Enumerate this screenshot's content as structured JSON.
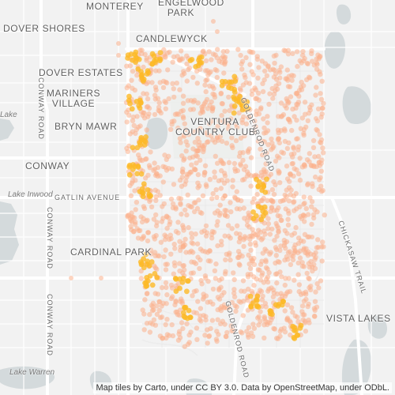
{
  "map": {
    "place_labels": {
      "monterey": "MONTEREY",
      "engelwood_park_1": "ENGELWOOD",
      "engelwood_park_2": "PARK",
      "dover_shores": "DOVER SHORES",
      "candlewyck": "CANDLEWYCK",
      "dover_estates": "DOVER ESTATES",
      "mariners_village_1": "MARINERS",
      "mariners_village_2": "VILLAGE",
      "bryn_mawr": "BRYN MAWR",
      "ventura_1": "VENTURA",
      "ventura_2": "COUNTRY CLUB",
      "conway": "CONWAY",
      "cardinal_park": "CARDINAL PARK",
      "vista_lakes": "VISTA LAKES"
    },
    "road_labels": {
      "gatlin_avenue": "GATLIN AVENUE",
      "conway_road_upper": "CONWAY ROAD",
      "conway_road_mid": "CONWAY ROAD",
      "conway_road_lower": "CONWAY ROAD",
      "goldenrod_upper": "GOLDENROD ROAD",
      "goldenrod_lower": "GOLDENROD ROAD",
      "chickasaw_trail": "CHICKASAW TRAIL"
    },
    "water_labels": {
      "lake_inwood": "Lake Inwood",
      "lake_warren": "Lake Warren",
      "lake_edge": "Lake"
    },
    "attribution": "Map tiles by Carto, under CC BY 3.0. Data by OpenStreetMap, under ODbL.",
    "colors": {
      "background": "#f2f2f2",
      "water": "#d4dadc",
      "road": "#ffffff",
      "heat_light": "#fbb08c",
      "heat_mid": "#fb9a66",
      "heat_hot": "#fdb927"
    }
  }
}
